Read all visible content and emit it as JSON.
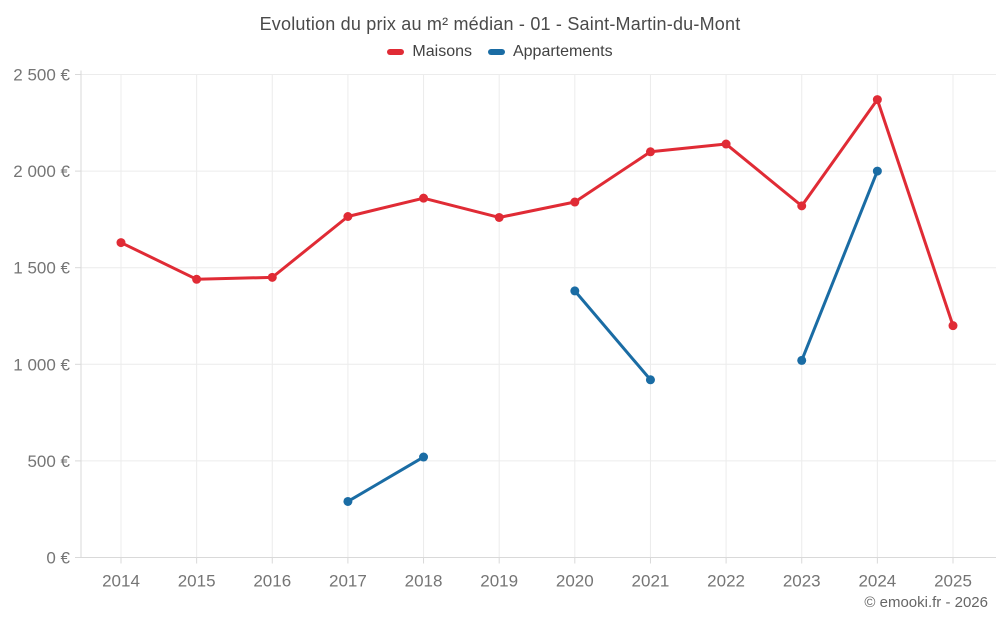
{
  "header": {
    "title": "Evolution du prix au m² médian - 01 - Saint-Martin-du-Mont"
  },
  "legend": [
    {
      "label": "Maisons",
      "color": "#e02b35"
    },
    {
      "label": "Appartements",
      "color": "#1a6ca4"
    }
  ],
  "footer": {
    "attribution": "© emooki.fr - 2026"
  },
  "colors": {
    "background": "#ffffff",
    "grid": "#ececec",
    "axis": "#d9d9d9",
    "tick_label": "#757575",
    "title_text": "#4a4a4a",
    "maisons": "#e02b35",
    "appartements": "#1a6ca4"
  },
  "chart_data": {
    "type": "line",
    "title": "Evolution du prix au m² médian - 01 - Saint-Martin-du-Mont",
    "x": [
      2014,
      2015,
      2016,
      2017,
      2018,
      2019,
      2020,
      2021,
      2022,
      2023,
      2024,
      2025
    ],
    "series": [
      {
        "name": "Maisons",
        "color": "#e02b35",
        "values": [
          1630,
          1440,
          1450,
          1765,
          1860,
          1760,
          1840,
          2100,
          2140,
          1820,
          2370,
          1200
        ]
      },
      {
        "name": "Appartements",
        "color": "#1a6ca4",
        "values": [
          null,
          null,
          null,
          290,
          520,
          null,
          1380,
          920,
          null,
          1020,
          2000,
          null
        ]
      }
    ],
    "xlabel": "",
    "ylabel": "",
    "ylim": [
      0,
      2500
    ],
    "yticks": [
      0,
      500,
      1000,
      1500,
      2000,
      2500
    ],
    "ytick_labels": [
      "0 €",
      "500 €",
      "1 000 €",
      "1 500 €",
      "2 000 €",
      "2 500 €"
    ],
    "grid": true,
    "legend_position": "top-center",
    "currency": "€"
  }
}
